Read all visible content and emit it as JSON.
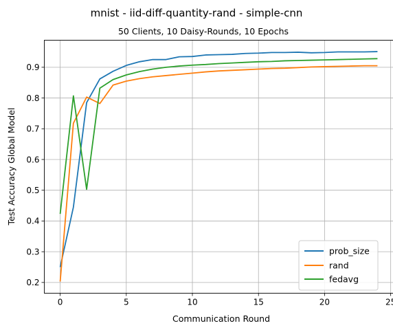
{
  "chart_data": {
    "type": "line",
    "title": "mnist - iid-diff-quantity-rand - simple-cnn",
    "subtitle": "50 Clients, 10 Daisy-Rounds, 10 Epochs",
    "xlabel": "Communication Round",
    "ylabel": "Test Accuracy Global Model",
    "xlim": [
      -1.2,
      25.2
    ],
    "ylim": [
      0.165,
      0.988
    ],
    "xticks": [
      0,
      5,
      10,
      15,
      20,
      25
    ],
    "yticks": [
      0.2,
      0.3,
      0.4,
      0.5,
      0.6,
      0.7,
      0.8,
      0.9
    ],
    "grid": true,
    "legend_position": "lower-right",
    "x": [
      0,
      1,
      2,
      3,
      4,
      5,
      6,
      7,
      8,
      9,
      10,
      11,
      12,
      13,
      14,
      15,
      16,
      17,
      18,
      19,
      20,
      21,
      22,
      23,
      24
    ],
    "series": [
      {
        "name": "prob_size",
        "color": "#1f77b4",
        "values": [
          0.25,
          0.445,
          0.785,
          0.862,
          0.887,
          0.906,
          0.918,
          0.925,
          0.925,
          0.934,
          0.935,
          0.94,
          0.941,
          0.942,
          0.945,
          0.946,
          0.948,
          0.948,
          0.949,
          0.947,
          0.948,
          0.95,
          0.95,
          0.95,
          0.951
        ]
      },
      {
        "name": "rand",
        "color": "#ff7f0e",
        "values": [
          0.203,
          0.718,
          0.803,
          0.782,
          0.842,
          0.855,
          0.863,
          0.869,
          0.873,
          0.877,
          0.881,
          0.885,
          0.888,
          0.89,
          0.892,
          0.894,
          0.896,
          0.897,
          0.899,
          0.901,
          0.902,
          0.903,
          0.904,
          0.905,
          0.905
        ]
      },
      {
        "name": "fedavg",
        "color": "#2ca02c",
        "values": [
          0.423,
          0.807,
          0.503,
          0.832,
          0.86,
          0.875,
          0.886,
          0.894,
          0.9,
          0.904,
          0.907,
          0.909,
          0.912,
          0.914,
          0.916,
          0.918,
          0.919,
          0.921,
          0.922,
          0.923,
          0.924,
          0.925,
          0.926,
          0.927,
          0.928
        ]
      }
    ]
  }
}
